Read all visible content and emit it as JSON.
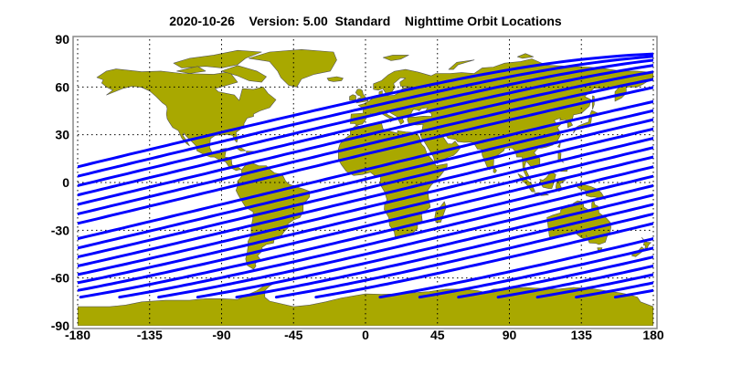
{
  "title": "2020-10-26    Version: 5.00  Standard    Nighttime Orbit Locations",
  "map": {
    "projection": "equirectangular",
    "lon_range": [
      -180,
      180
    ],
    "lat_range": [
      -90,
      90
    ],
    "x_ticks": [
      "-180",
      "-135",
      "-90",
      "-45",
      "0",
      "45",
      "90",
      "135",
      "180"
    ],
    "y_ticks": [
      "90",
      "60",
      "30",
      "0",
      "-30",
      "-60",
      "-90"
    ],
    "grid": "dotted",
    "land_color": "#a9a800",
    "coast_color": "#555555",
    "orbit_color": "#0000ff",
    "orbit_tracks": {
      "start_lat": -72,
      "max_lat": 81.8,
      "start_lons": [
        -178.2,
        -153.8,
        -129.4,
        -105.0,
        -80.6,
        -55.8,
        -31.0,
        9.1,
        33.9,
        58.1,
        82.9,
        107.5,
        131.8,
        156.2
      ]
    }
  }
}
